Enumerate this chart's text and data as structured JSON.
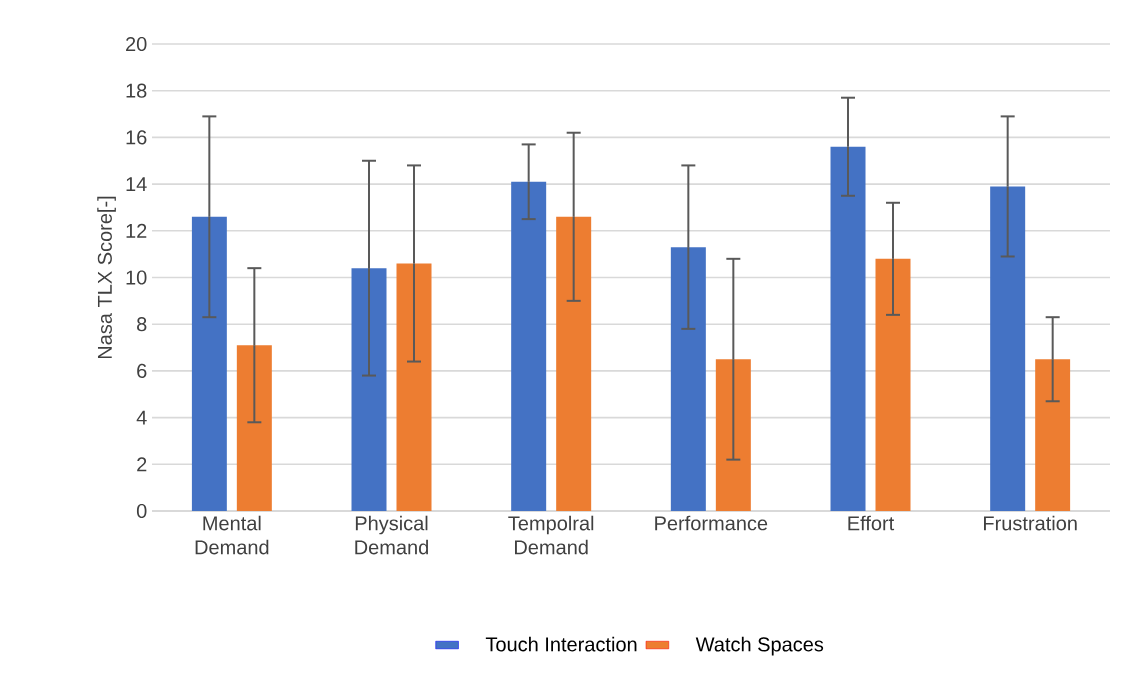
{
  "chart_data": {
    "type": "bar",
    "ylabel": "Nasa TLX Score[-]",
    "categories": [
      "Mental Demand",
      "Physical Demand",
      "Tempolral Demand",
      "Performance",
      "Effort",
      "Frustration"
    ],
    "series": [
      {
        "name": "Touch Interaction",
        "color": "#4472c4",
        "values": [
          12.6,
          10.4,
          14.1,
          11.3,
          15.6,
          13.9
        ],
        "errors": [
          4.3,
          4.6,
          1.6,
          3.5,
          2.1,
          3.0
        ]
      },
      {
        "name": "Watch Spaces",
        "color": "#ed7d31",
        "values": [
          7.1,
          10.6,
          12.6,
          6.5,
          10.8,
          6.5
        ],
        "errors": [
          3.3,
          4.2,
          3.6,
          4.3,
          2.4,
          1.8
        ]
      }
    ],
    "ylim": [
      0,
      20
    ],
    "yticks": [
      0,
      2,
      4,
      6,
      8,
      10,
      12,
      14,
      16,
      18,
      20
    ],
    "grid": "y",
    "legend": "bottom"
  }
}
